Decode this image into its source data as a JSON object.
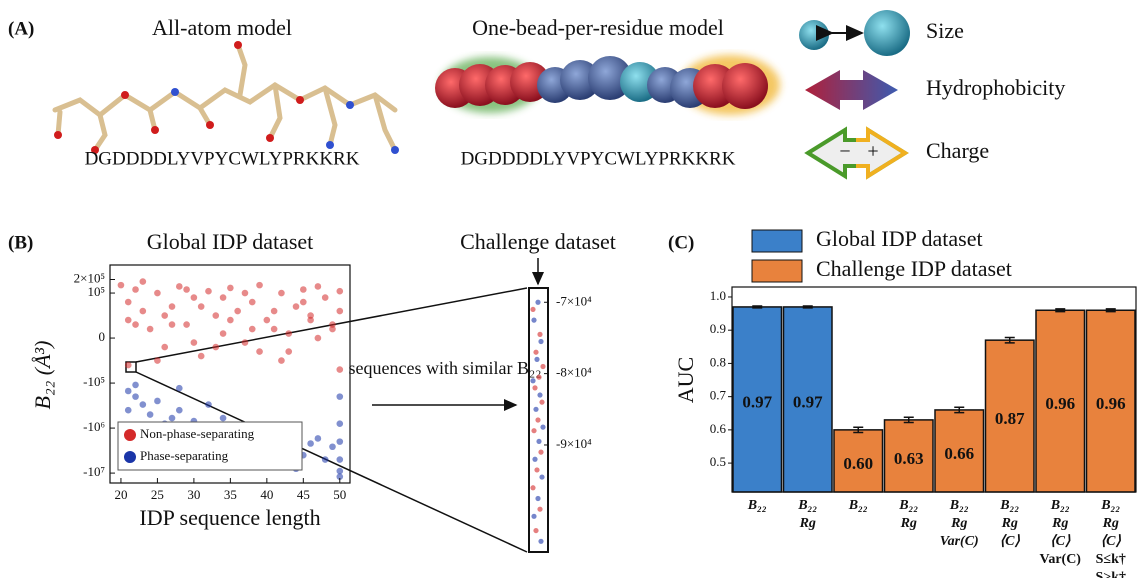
{
  "panels": {
    "a": "(A)",
    "b": "(B)",
    "c": "(C)"
  },
  "panel_a": {
    "all_atom_title": "All-atom model",
    "bead_title": "One-bead-per-residue model",
    "sequence_all_atom": "DGDDDDLYVPYCWLYPRKKRK",
    "sequence_bead": "DGDDDDLYVPYCWLYPRKKRK",
    "legend": {
      "size": "Size",
      "hydrophobicity": "Hydrophobicity",
      "charge": "Charge",
      "minus": "−",
      "plus": "+"
    }
  },
  "chart_data": [
    {
      "type": "scatter",
      "title": "Global IDP dataset",
      "x_label": "IDP sequence length",
      "y_label": "B₂₂ (Å³)",
      "xlim": [
        18.5,
        51.4
      ],
      "xticks": [
        20,
        25,
        30,
        35,
        40,
        45,
        50
      ],
      "yscale": "symlog",
      "linthresh": 100000,
      "ylim": [
        -16600000,
        420000
      ],
      "yticks": [
        {
          "value": 200000,
          "label": "2×10⁵"
        },
        {
          "value": 100000,
          "label": "10⁵"
        },
        0,
        {
          "value": -100000,
          "label": "-10⁵"
        },
        {
          "value": -1000000,
          "label": "-10⁶"
        },
        {
          "value": -10000000,
          "label": "-10⁷"
        }
      ],
      "legend": "lower left",
      "series": [
        {
          "name": "Non-phase-separating",
          "color": "#d42a2a",
          "x": [
            20,
            21,
            21,
            22,
            23,
            24,
            25,
            26,
            27,
            28,
            29,
            30,
            31,
            32,
            33,
            34,
            35,
            36,
            37,
            38,
            39,
            40,
            41,
            42,
            43,
            44,
            45,
            46,
            47,
            48,
            49,
            50,
            21,
            23,
            25,
            27,
            29,
            31,
            33,
            35,
            37,
            39,
            41,
            43,
            45,
            47,
            49,
            50,
            22,
            26,
            30,
            34,
            38,
            42,
            46,
            50
          ],
          "values": [
            150000,
            80000,
            40000,
            120000,
            60000,
            20000,
            100000,
            -20000,
            70000,
            140000,
            30000,
            90000,
            -40000,
            110000,
            50000,
            10000,
            130000,
            60000,
            -10000,
            80000,
            150000,
            40000,
            20000,
            100000,
            -30000,
            70000,
            120000,
            50000,
            0,
            90000,
            30000,
            60000,
            -60000,
            180000,
            -50000,
            30000,
            120000,
            70000,
            -20000,
            40000,
            100000,
            -30000,
            60000,
            10000,
            80000,
            140000,
            20000,
            -70000,
            30000,
            50000,
            -10000,
            90000,
            20000,
            -50000,
            40000,
            110000
          ]
        },
        {
          "name": "Phase-separating",
          "color": "#1a35a8",
          "x": [
            21,
            21,
            22,
            23,
            24,
            25,
            26,
            27,
            28,
            29,
            30,
            31,
            32,
            32,
            33,
            34,
            35,
            36,
            37,
            38,
            39,
            40,
            41,
            42,
            43,
            44,
            45,
            46,
            47,
            48,
            49,
            50,
            50,
            50,
            50,
            50,
            50,
            22,
            28,
            36,
            44
          ],
          "values": [
            -150000,
            -400000,
            -200000,
            -300000,
            -500000,
            -250000,
            -800000,
            -600000,
            -400000,
            -1200000,
            -700000,
            -900000,
            -300000,
            -2000000,
            -1500000,
            -600000,
            -1800000,
            -900000,
            -1100000,
            -2500000,
            -1300000,
            -1600000,
            -3000000,
            -1400000,
            -2000000,
            -900000,
            -4000000,
            -2200000,
            -1700000,
            -5000000,
            -2600000,
            -200000,
            -800000,
            -2000000,
            -5000000,
            -9000000,
            -12000000,
            -110000,
            -130000,
            -2000000,
            -8000000
          ]
        }
      ]
    },
    {
      "type": "strip",
      "title": "Challenge dataset",
      "annotation": "sequences with similar B₂₂",
      "ylim": [
        -105000,
        -68000
      ],
      "yticks": [
        {
          "value": -70000,
          "label": "-7×10⁴"
        },
        {
          "value": -80000,
          "label": "-8×10⁴"
        },
        {
          "value": -90000,
          "label": "-9×10⁴"
        }
      ],
      "series": [
        {
          "name": "Non-phase-separating",
          "color": "#d42a2a",
          "values": [
            -71000,
            -74500,
            -77000,
            -79000,
            -80500,
            -82000,
            -84000,
            -86500,
            -88000,
            -91000,
            -93500,
            -96000,
            -99000,
            -102000
          ]
        },
        {
          "name": "Phase-separating",
          "color": "#1a35a8",
          "values": [
            -70000,
            -72500,
            -75500,
            -78000,
            -81000,
            -83000,
            -85000,
            -87500,
            -89500,
            -92000,
            -94500,
            -97500,
            -100000,
            -103500
          ]
        }
      ]
    },
    {
      "type": "bar",
      "y_label": "AUC",
      "ylim": [
        0.413,
        1.03
      ],
      "yticks": [
        0.5,
        0.6,
        0.7,
        0.8,
        0.9,
        {
          "value": 1,
          "label": "1.0"
        }
      ],
      "legend": "top",
      "categories": [
        [
          "B₂₂"
        ],
        [
          "B₂₂",
          "Rg"
        ],
        [
          "B₂₂"
        ],
        [
          "B₂₂",
          "Rg"
        ],
        [
          "B₂₂",
          "Rg",
          "Var(C)"
        ],
        [
          "B₂₂",
          "Rg",
          "⟨C⟩"
        ],
        [
          "B₂₂",
          "Rg",
          "⟨C⟩",
          "Var(C)"
        ],
        [
          "B₂₂",
          "Rg",
          "⟨C⟩",
          "S≤k†",
          "S>k†"
        ]
      ],
      "series": [
        {
          "name": "Global IDP dataset",
          "color": "#3b80c9",
          "values": [
            0.97,
            0.97,
            null,
            null,
            null,
            null,
            null,
            null
          ],
          "value_labels": [
            "0.97",
            "0.97",
            null,
            null,
            null,
            null,
            null,
            null
          ],
          "errors": [
            0.003,
            0.003,
            null,
            null,
            null,
            null,
            null,
            null
          ]
        },
        {
          "name": "Challenge IDP dataset",
          "color": "#e8823d",
          "values": [
            null,
            null,
            0.6,
            0.63,
            0.66,
            0.87,
            0.96,
            0.96
          ],
          "value_labels": [
            null,
            null,
            "0.60",
            "0.63",
            "0.66",
            "0.87",
            "0.96",
            "0.96"
          ],
          "errors": [
            null,
            null,
            0.008,
            0.008,
            0.008,
            0.008,
            0.004,
            0.004
          ]
        }
      ]
    }
  ]
}
